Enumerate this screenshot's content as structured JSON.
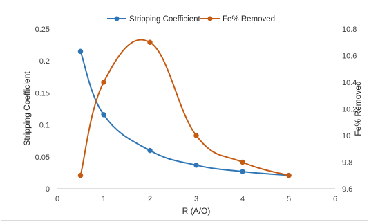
{
  "chart_data": {
    "type": "line",
    "title": "",
    "xlabel": "R (A/O)",
    "ylabel": "Stripping Coefficient",
    "y2label": "Fe% Removed",
    "xlim": [
      0,
      6
    ],
    "ylim": [
      0,
      0.25
    ],
    "y2lim": [
      9.6,
      10.8
    ],
    "x_ticks": [
      "0",
      "1",
      "2",
      "3",
      "4",
      "5",
      "6"
    ],
    "y_ticks": [
      "0",
      "0.05",
      "0.1",
      "0.15",
      "0.2",
      "0.25"
    ],
    "y2_ticks": [
      "9.6",
      "9.8",
      "10",
      "10.2",
      "10.4",
      "10.6",
      "10.8"
    ],
    "legend_position": "top",
    "grid": false,
    "series": [
      {
        "name": "Stripping Coefficient",
        "axis": "left",
        "color": "#2e75b6",
        "x": [
          0.5,
          1,
          2,
          3,
          4,
          5
        ],
        "y": [
          0.215,
          0.116,
          0.06,
          0.037,
          0.027,
          0.021
        ]
      },
      {
        "name": "Fe% Removed",
        "axis": "right",
        "color": "#c55a11",
        "x": [
          0.5,
          1,
          2,
          3,
          4,
          5
        ],
        "y": [
          9.7,
          10.4,
          10.7,
          10.0,
          9.8,
          9.7
        ]
      }
    ]
  }
}
